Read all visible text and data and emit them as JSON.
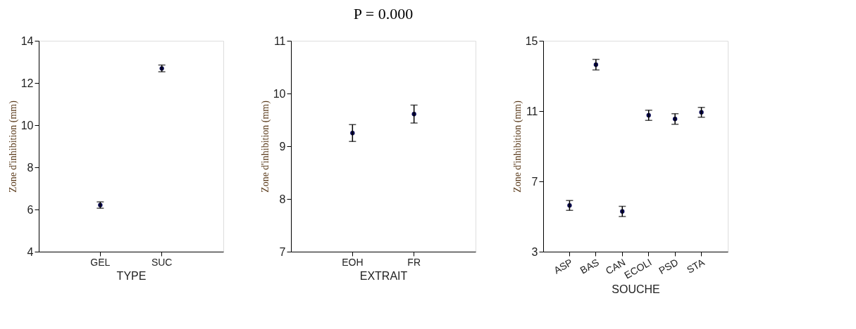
{
  "chart_data": [
    {
      "type": "scatter",
      "xlabel": "TYPE",
      "ylabel": "Zone d'inhibition (mm)",
      "categories": [
        "GEL",
        "SUC"
      ],
      "values": [
        6.21,
        12.69
      ],
      "errors": [
        0.15,
        0.16
      ],
      "color": "#0a0a50",
      "ylim": [
        4,
        14
      ],
      "yticks": [
        4,
        6,
        8,
        10,
        12,
        14
      ]
    },
    {
      "type": "scatter",
      "title": "P = 0.000",
      "xlabel": "EXTRAIT",
      "ylabel": "Zone d'inhibition (mm)",
      "categories": [
        "EOH",
        "FR"
      ],
      "values": [
        9.25,
        9.61
      ],
      "errors": [
        0.16,
        0.17
      ],
      "color": "#0a0a50",
      "ylim": [
        7,
        11
      ],
      "yticks": [
        7,
        8,
        9,
        10,
        11
      ]
    },
    {
      "type": "scatter",
      "xlabel": "SOUCHE",
      "ylabel": "Zone d'inhibition (mm)",
      "categories": [
        "ASP",
        "BAS",
        "CAN",
        "ECOLI",
        "PSD",
        "STA"
      ],
      "values": [
        5.63,
        13.64,
        5.29,
        10.76,
        10.55,
        10.93
      ],
      "errors": [
        0.28,
        0.3,
        0.29,
        0.29,
        0.3,
        0.28
      ],
      "color": "#0a0a50",
      "ylim": [
        3,
        15
      ],
      "yticks": [
        3,
        7,
        11,
        15
      ]
    }
  ]
}
